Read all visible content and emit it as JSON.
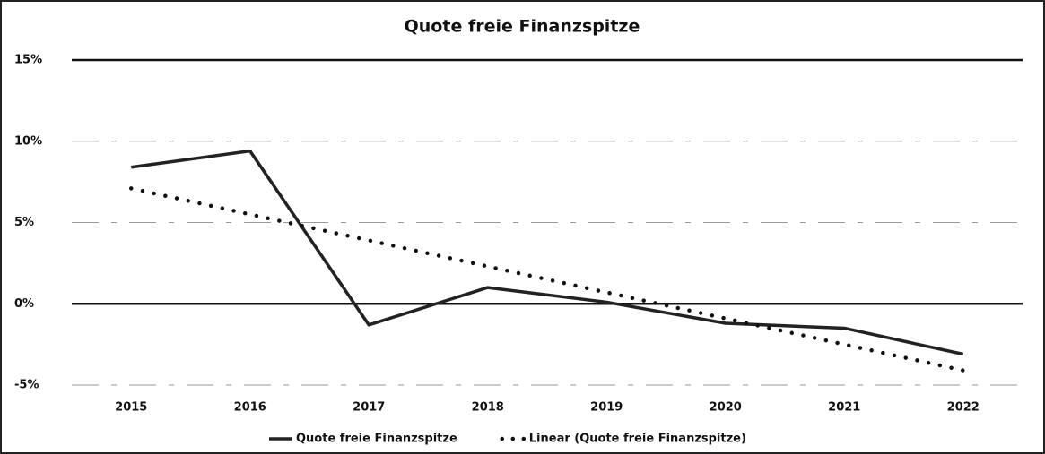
{
  "chart_data": {
    "type": "line",
    "title": "Quote freie Finanzspitze",
    "categories": [
      "2015",
      "2016",
      "2017",
      "2018",
      "2019",
      "2020",
      "2021",
      "2022"
    ],
    "series": [
      {
        "name": "Quote freie Finanzspitze",
        "color": "#222222",
        "style": "solid",
        "values": [
          8.4,
          9.4,
          -1.3,
          1.0,
          0.1,
          -1.2,
          -1.5,
          -3.1
        ]
      },
      {
        "name": "Linear (Quote freie Finanzspitze)",
        "color": "#111111",
        "style": "dotted",
        "values": [
          7.1,
          5.5,
          3.9,
          2.3,
          0.7,
          -0.9,
          -2.5,
          -4.1
        ]
      }
    ],
    "ylim": [
      -5,
      15
    ],
    "yticks": [
      {
        "value": -5,
        "label": "-5%"
      },
      {
        "value": 0,
        "label": "0%"
      },
      {
        "value": 5,
        "label": "5%"
      },
      {
        "value": 10,
        "label": "10%"
      },
      {
        "value": 15,
        "label": "15%"
      }
    ],
    "grid": true,
    "legend": "bottom"
  }
}
